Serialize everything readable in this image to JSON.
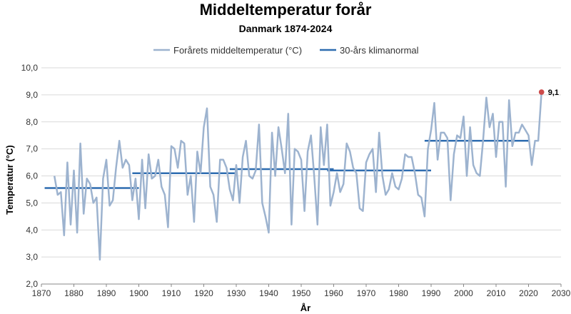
{
  "chart_data": {
    "type": "line",
    "title": "Middeltemperatur forår",
    "subtitle": "Danmark 1874-2024",
    "xlabel": "År",
    "ylabel": "Temperatur (°C)",
    "xlim": [
      1870,
      2030
    ],
    "ylim": [
      2.0,
      10.0
    ],
    "xticks": [
      1870,
      1880,
      1890,
      1900,
      1910,
      1920,
      1930,
      1940,
      1950,
      1960,
      1970,
      1980,
      1990,
      2000,
      2010,
      2020,
      2030
    ],
    "yticks": [
      "2,0",
      "3,0",
      "4,0",
      "5,0",
      "6,0",
      "7,0",
      "8,0",
      "9,0",
      "10,0"
    ],
    "ytick_values": [
      2,
      3,
      4,
      5,
      6,
      7,
      8,
      9,
      10
    ],
    "grid": "horizontal",
    "legend_position": "top",
    "colors": {
      "series": "#9db3cf",
      "normal": "#2e6cb0",
      "highlight": "#cc4a4a",
      "grid": "#d9d9d9",
      "axis": "#888888"
    },
    "series": [
      {
        "name": "Forårets middeltemperatur (°C)",
        "x": [
          1874,
          1875,
          1876,
          1877,
          1878,
          1879,
          1880,
          1881,
          1882,
          1883,
          1884,
          1885,
          1886,
          1887,
          1888,
          1889,
          1890,
          1891,
          1892,
          1893,
          1894,
          1895,
          1896,
          1897,
          1898,
          1899,
          1900,
          1901,
          1902,
          1903,
          1904,
          1905,
          1906,
          1907,
          1908,
          1909,
          1910,
          1911,
          1912,
          1913,
          1914,
          1915,
          1916,
          1917,
          1918,
          1919,
          1920,
          1921,
          1922,
          1923,
          1924,
          1925,
          1926,
          1927,
          1928,
          1929,
          1930,
          1931,
          1932,
          1933,
          1934,
          1935,
          1936,
          1937,
          1938,
          1939,
          1940,
          1941,
          1942,
          1943,
          1944,
          1945,
          1946,
          1947,
          1948,
          1949,
          1950,
          1951,
          1952,
          1953,
          1954,
          1955,
          1956,
          1957,
          1958,
          1959,
          1960,
          1961,
          1962,
          1963,
          1964,
          1965,
          1966,
          1967,
          1968,
          1969,
          1970,
          1971,
          1972,
          1973,
          1974,
          1975,
          1976,
          1977,
          1978,
          1979,
          1980,
          1981,
          1982,
          1983,
          1984,
          1985,
          1986,
          1987,
          1988,
          1989,
          1990,
          1991,
          1992,
          1993,
          1994,
          1995,
          1996,
          1997,
          1998,
          1999,
          2000,
          2001,
          2002,
          2003,
          2004,
          2005,
          2006,
          2007,
          2008,
          2009,
          2010,
          2011,
          2012,
          2013,
          2014,
          2015,
          2016,
          2017,
          2018,
          2019,
          2020,
          2021,
          2022,
          2023,
          2024
        ],
        "values": [
          6.0,
          5.3,
          5.4,
          3.8,
          6.5,
          4.2,
          6.2,
          3.9,
          7.2,
          4.6,
          5.9,
          5.7,
          5.0,
          5.2,
          2.9,
          5.9,
          6.6,
          4.9,
          5.1,
          6.3,
          7.3,
          6.3,
          6.6,
          6.4,
          5.1,
          5.9,
          4.4,
          6.6,
          4.8,
          6.8,
          5.9,
          6.0,
          6.6,
          5.6,
          5.3,
          4.1,
          7.1,
          7.0,
          6.3,
          7.3,
          7.2,
          5.3,
          6.0,
          4.3,
          6.9,
          6.1,
          7.8,
          8.5,
          5.6,
          5.3,
          4.3,
          6.6,
          6.6,
          6.3,
          5.5,
          5.1,
          6.4,
          5.0,
          6.7,
          7.3,
          6.0,
          5.9,
          6.2,
          7.9,
          5.0,
          4.5,
          3.9,
          7.6,
          6.0,
          7.8,
          7.0,
          6.1,
          8.3,
          4.2,
          7.0,
          6.9,
          6.6,
          4.7,
          6.9,
          7.5,
          6.0,
          4.2,
          7.8,
          6.4,
          7.9,
          4.9,
          5.4,
          6.1,
          5.4,
          5.7,
          7.2,
          6.9,
          6.3,
          6.1,
          4.8,
          4.7,
          6.5,
          6.8,
          7.0,
          5.4,
          7.6,
          6.0,
          5.3,
          5.5,
          6.1,
          5.6,
          5.5,
          5.9,
          6.8,
          6.7,
          6.7,
          6.1,
          5.3,
          5.2,
          4.5,
          7.0,
          7.7,
          8.7,
          6.6,
          7.6,
          7.6,
          7.4,
          5.1,
          6.8,
          7.5,
          7.4,
          8.2,
          6.0,
          7.8,
          6.4,
          6.1,
          6.0,
          7.3,
          8.9,
          7.8,
          8.3,
          6.7,
          8.0,
          8.0,
          5.6,
          8.8,
          7.1,
          7.6,
          7.6,
          7.9,
          7.7,
          7.5,
          6.4,
          7.3,
          7.3,
          9.1
        ]
      },
      {
        "name": "30-års klimanormal",
        "segments": [
          {
            "from": 1874,
            "to": 1900,
            "value": 5.55
          },
          {
            "from": 1901,
            "to": 1930,
            "value": 6.1
          },
          {
            "from": 1931,
            "to": 1960,
            "value": 6.25
          },
          {
            "from": 1961,
            "to": 1990,
            "value": 6.2
          },
          {
            "from": 1991,
            "to": 2020,
            "value": 7.3
          }
        ]
      }
    ],
    "annotations": [
      {
        "x": 2024,
        "y": 9.1,
        "text": "9,1"
      }
    ]
  }
}
